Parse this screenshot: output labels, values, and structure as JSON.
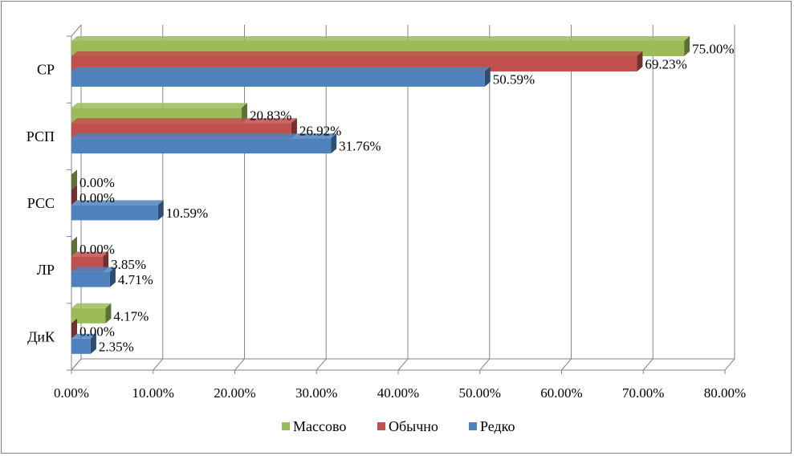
{
  "chart_data": {
    "type": "bar",
    "orientation": "horizontal",
    "categories": [
      "СР",
      "РСП",
      "РСС",
      "ЛР",
      "ДиК"
    ],
    "series": [
      {
        "name": "Массово",
        "color": "#9bbb59",
        "values": [
          75.0,
          20.83,
          0.0,
          0.0,
          4.17
        ],
        "labels": [
          "75.00%",
          "20.83%",
          "0.00%",
          "0.00%",
          "4.17%"
        ]
      },
      {
        "name": "Обычно",
        "color": "#c0504d",
        "values": [
          69.23,
          26.92,
          0.0,
          3.85,
          0.0
        ],
        "labels": [
          "69.23%",
          "26.92%",
          "0.00%",
          "3.85%",
          "0.00%"
        ]
      },
      {
        "name": "Редко",
        "color": "#4f81bd",
        "values": [
          50.59,
          31.76,
          10.59,
          4.71,
          2.35
        ],
        "labels": [
          "50.59%",
          "31.76%",
          "10.59%",
          "4.71%",
          "2.35%"
        ]
      }
    ],
    "xlim": [
      0,
      80
    ],
    "xticks": [
      "0.00%",
      "10.00%",
      "20.00%",
      "30.00%",
      "40.00%",
      "50.00%",
      "60.00%",
      "70.00%",
      "80.00%"
    ],
    "grid": true,
    "legend_position": "bottom",
    "style": "3d"
  }
}
